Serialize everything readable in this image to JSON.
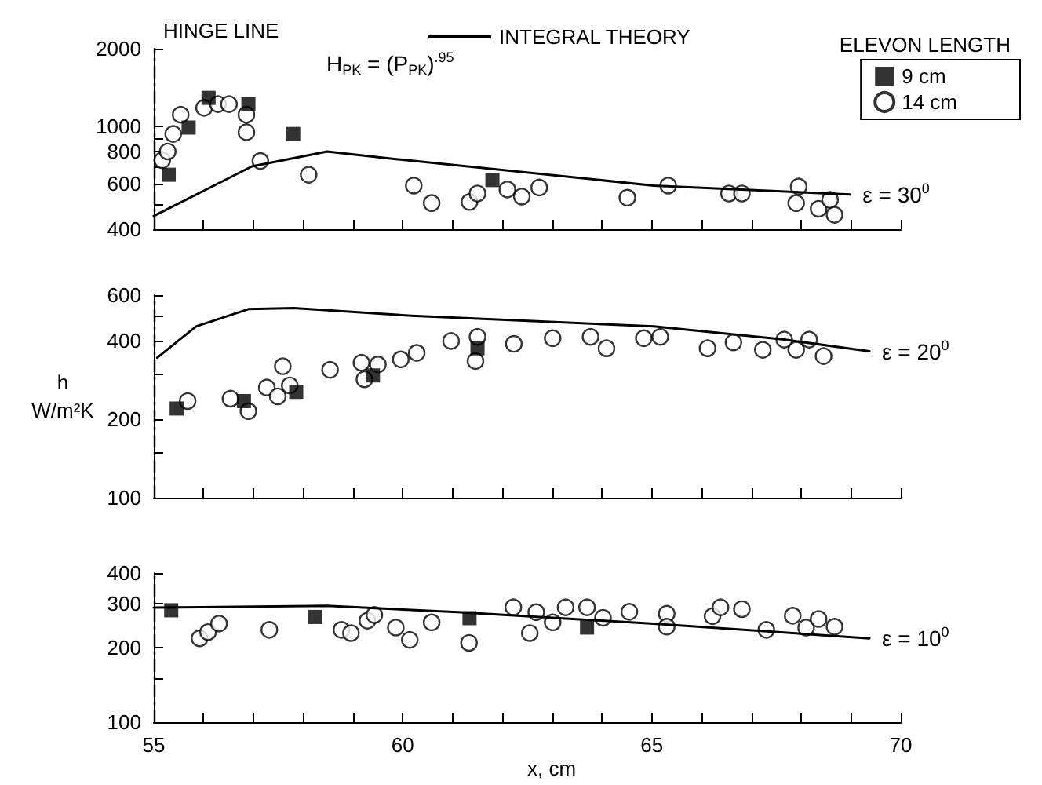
{
  "chart_data": [
    {
      "type": "scatter",
      "legend": "top right",
      "legend_title": "ELEVON LENGTH",
      "log": "y",
      "tick_labels": "y",
      "xlim": [
        55,
        70
      ],
      "xticks": [
        55,
        {
          "value": 56,
          "label": null
        },
        {
          "value": 57,
          "label": null
        },
        {
          "value": 58,
          "label": null
        },
        {
          "value": 59,
          "label": null
        },
        60,
        {
          "value": 61,
          "label": null
        },
        {
          "value": 62,
          "label": null
        },
        {
          "value": 63,
          "label": null
        },
        {
          "value": 64,
          "label": null
        },
        65,
        {
          "value": 66,
          "label": null
        },
        {
          "value": 67,
          "label": null
        },
        {
          "value": 68,
          "label": null
        },
        {
          "value": 69,
          "label": null
        },
        70
      ],
      "ylim": [
        400,
        2000
      ],
      "yticks": [
        400,
        {
          "value": 500,
          "label": null
        },
        600,
        {
          "value": 700,
          "label": null
        },
        800,
        {
          "value": 900,
          "label": null
        },
        1000,
        2000
      ],
      "ref_lines": [
        {
          "axis": "x",
          "value": 55,
          "label": "HINGE LINE",
          "line_style": "dashed"
        }
      ],
      "annotations": [
        "ε = 30$^{0}$",
        "H$_{PK}$ = (P$_{PK}$)$^{.95}$"
      ],
      "series": [
        {
          "name": "INTEGRAL THEORY",
          "type": "line",
          "color": "#000000",
          "x": [
            55,
            56.97,
            58.48,
            59.79,
            65.04,
            68.98
          ],
          "values": [
            450,
            700,
            800,
            750,
            590,
            545
          ]
        },
        {
          "name": "9 cm",
          "marker": "square",
          "color": "#000000",
          "x": [
            55.3,
            55.7,
            56.1,
            56.9,
            57.8,
            61.8
          ],
          "values": [
            650,
            990,
            1290,
            1220,
            935,
            620
          ]
        },
        {
          "name": "14 cm",
          "marker": "circle",
          "color": "#000000",
          "x": [
            55.17,
            55.28,
            55.39,
            55.54,
            56.01,
            56.29,
            56.51,
            56.86,
            56.86,
            57.14,
            58.11,
            60.22,
            60.58,
            61.34,
            61.5,
            62.1,
            62.39,
            62.74,
            64.51,
            65.33,
            66.55,
            66.81,
            67.95,
            67.9,
            68.35,
            68.58,
            68.67
          ],
          "values": [
            740,
            800,
            935,
            1110,
            1180,
            1220,
            1220,
            1110,
            950,
            735,
            650,
            590,
            505,
            510,
            550,
            570,
            535,
            580,
            530,
            590,
            550,
            550,
            585,
            505,
            480,
            520,
            455
          ]
        }
      ]
    },
    {
      "type": "scatter",
      "log": "y",
      "tick_labels": "y",
      "ylabel": "h W/m²K",
      "xlim": [
        55,
        70
      ],
      "xticks": [
        55,
        {
          "value": 56,
          "label": null
        },
        {
          "value": 57,
          "label": null
        },
        {
          "value": 58,
          "label": null
        },
        {
          "value": 59,
          "label": null
        },
        60,
        {
          "value": 61,
          "label": null
        },
        {
          "value": 62,
          "label": null
        },
        {
          "value": 63,
          "label": null
        },
        {
          "value": 64,
          "label": null
        },
        65,
        {
          "value": 66,
          "label": null
        },
        {
          "value": 67,
          "label": null
        },
        {
          "value": 68,
          "label": null
        },
        {
          "value": 69,
          "label": null
        },
        70
      ],
      "ylim": [
        100,
        600
      ],
      "yticks": [
        100,
        {
          "value": 150,
          "label": null
        },
        200,
        {
          "value": 300,
          "label": null
        },
        400,
        {
          "value": 500,
          "label": null
        },
        600
      ],
      "ref_lines": [
        {
          "axis": "x",
          "value": 55,
          "line_style": "dashed"
        }
      ],
      "annotations": [
        "ε = 20$^{0}$"
      ],
      "series": [
        {
          "type": "line",
          "color": "#000000",
          "x": [
            55.07,
            55.85,
            56.9,
            57.82,
            60.18,
            65.04,
            67.66,
            69.37
          ],
          "values": [
            345,
            455,
            530,
            535,
            500,
            455,
            405,
            365
          ]
        },
        {
          "marker": "square",
          "color": "#000000",
          "x": [
            55.46,
            56.81,
            57.86,
            59.4,
            61.5
          ],
          "values": [
            220,
            235,
            255,
            295,
            375
          ]
        },
        {
          "marker": "circle",
          "color": "#000000",
          "x": [
            55.68,
            56.54,
            56.9,
            57.27,
            57.49,
            57.59,
            57.73,
            58.54,
            59.17,
            59.23,
            59.5,
            59.96,
            60.28,
            60.97,
            61.5,
            61.46,
            62.23,
            63.01,
            63.77,
            64.09,
            64.84,
            65.17,
            66.12,
            66.64,
            67.23,
            67.66,
            67.9,
            68.16,
            68.45
          ],
          "values": [
            235,
            240,
            215,
            265,
            245,
            320,
            270,
            310,
            330,
            285,
            325,
            340,
            360,
            400,
            415,
            335,
            390,
            410,
            415,
            375,
            410,
            415,
            375,
            395,
            370,
            405,
            370,
            405,
            350
          ]
        }
      ]
    },
    {
      "type": "scatter",
      "log": "y",
      "xlabel": "x, cm",
      "xlim": [
        55,
        70
      ],
      "xticks": [
        55,
        {
          "value": 56,
          "label": null
        },
        {
          "value": 57,
          "label": null
        },
        {
          "value": 58,
          "label": null
        },
        {
          "value": 59,
          "label": null
        },
        60,
        {
          "value": 61,
          "label": null
        },
        {
          "value": 62,
          "label": null
        },
        {
          "value": 63,
          "label": null
        },
        {
          "value": 64,
          "label": null
        },
        65,
        {
          "value": 66,
          "label": null
        },
        {
          "value": 67,
          "label": null
        },
        {
          "value": 68,
          "label": null
        },
        {
          "value": 69,
          "label": null
        },
        70
      ],
      "ylim": [
        100,
        400
      ],
      "yticks": [
        100,
        {
          "value": 150,
          "label": null
        },
        200,
        300,
        400
      ],
      "ref_lines": [
        {
          "axis": "x",
          "value": 55,
          "line_style": "dashed"
        }
      ],
      "annotations": [
        "ε = 10$^{0}$"
      ],
      "series": [
        {
          "type": "line",
          "color": "#000000",
          "x": [
            55,
            58.48,
            61.1,
            65.04,
            69.37
          ],
          "values": [
            290,
            295,
            278,
            250,
            218
          ]
        },
        {
          "marker": "square",
          "color": "#000000",
          "x": [
            55.35,
            58.24,
            61.34,
            63.7
          ],
          "values": [
            283,
            266,
            263,
            241
          ]
        },
        {
          "marker": "circle",
          "color": "#000000",
          "x": [
            55.92,
            56.09,
            56.31,
            57.32,
            58.77,
            58.96,
            59.29,
            59.43,
            59.86,
            60.14,
            60.58,
            61.33,
            62.22,
            62.55,
            62.68,
            63.01,
            63.27,
            63.7,
            64.02,
            64.55,
            65.3,
            65.3,
            66.22,
            66.38,
            66.81,
            67.3,
            67.83,
            68.1,
            68.35,
            68.67
          ],
          "values": [
            218,
            231,
            250,
            236,
            236,
            229,
            257,
            271,
            241,
            215,
            253,
            209,
            291,
            229,
            278,
            253,
            291,
            291,
            264,
            279,
            274,
            243,
            268,
            291,
            286,
            236,
            269,
            241,
            261,
            243
          ]
        }
      ]
    }
  ]
}
